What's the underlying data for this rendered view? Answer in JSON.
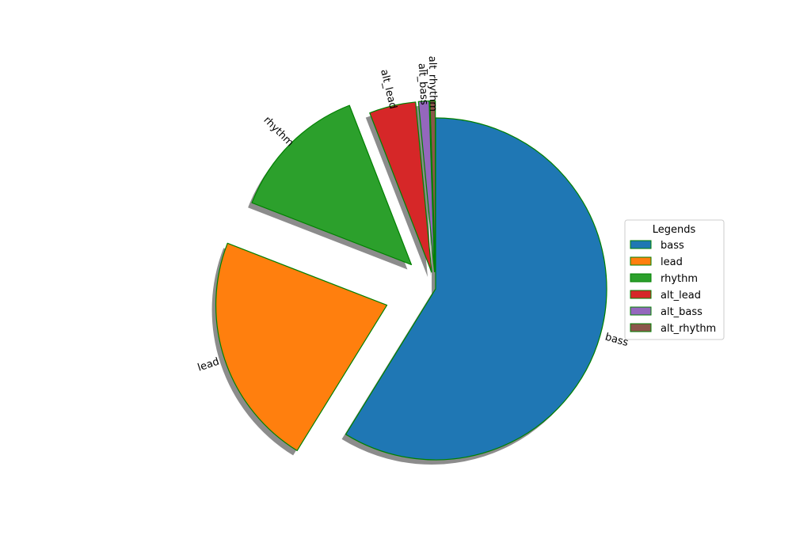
{
  "chart_data": {
    "type": "pie",
    "title": "",
    "start_angle_deg": 90,
    "direction": "clockwise",
    "shadow": true,
    "edge_color": "#008000",
    "slices": [
      {
        "label": "bass",
        "value": 58.8,
        "explode": 0.0,
        "color": "#1f77b4"
      },
      {
        "label": "lead",
        "value": 22.1,
        "explode": 0.3,
        "color": "#ff7f0e"
      },
      {
        "label": "rhythm",
        "value": 13.2,
        "explode": 0.2,
        "color": "#2ca02c"
      },
      {
        "label": "alt_lead",
        "value": 4.4,
        "explode": 0.1,
        "color": "#d62728"
      },
      {
        "label": "alt_bass",
        "value": 1.0,
        "explode": 0.1,
        "color": "#9467bd"
      },
      {
        "label": "alt_rhythm",
        "value": 0.5,
        "explode": 0.1,
        "color": "#8c564b"
      }
    ],
    "legend": {
      "title": "Legends",
      "placement": "right",
      "entries": [
        "bass",
        "lead",
        "rhythm",
        "alt_lead",
        "alt_bass",
        "alt_rhythm"
      ]
    }
  }
}
